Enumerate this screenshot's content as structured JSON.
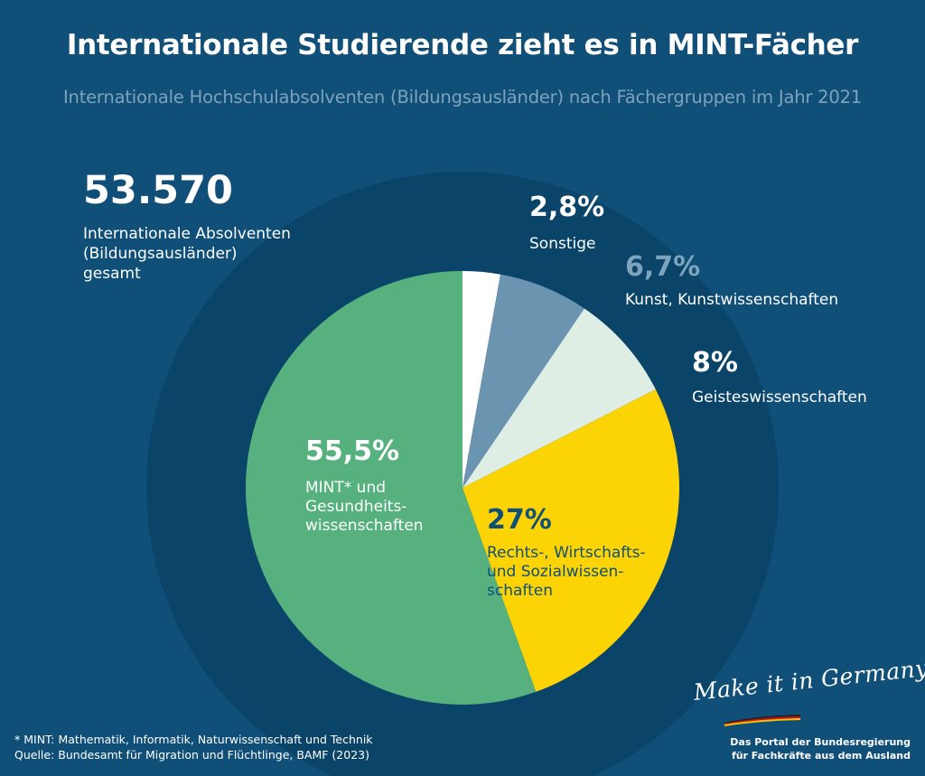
{
  "title": "Internationale Studierende zieht es in MINT-Fächer",
  "subtitle": "Internationale Hochschulabsolventen (Bildungsausländer) nach Fächergruppen im Jahr 2021",
  "total": {
    "value": "53.570",
    "label_lines": [
      "Internationale Absolventen",
      "(Bildungsausländer)",
      "gesamt"
    ]
  },
  "chart_data": {
    "type": "pie",
    "slices": [
      {
        "pct_label": "2,8%",
        "label": "Sonstige",
        "value": 2.8,
        "color": "#ffffff"
      },
      {
        "pct_label": "6,7%",
        "label": "Kunst, Kunstwissenschaften",
        "value": 6.7,
        "color": "#6a94b0"
      },
      {
        "pct_label": "8%",
        "label": "Geisteswissenschaften",
        "value": 8.0,
        "color": "#deeee5"
      },
      {
        "pct_label": "27%",
        "label": "Rechts-, Wirtschafts- und Sozialwissen-schaften",
        "value": 27.0,
        "color": "#fcd405"
      },
      {
        "pct_label": "55,5%",
        "label": "MINT* und Gesundheits-wissenschaften",
        "value": 55.5,
        "color": "#56b17f"
      }
    ]
  },
  "labels": {
    "sonstige": {
      "pct": "2,8%",
      "text": "Sonstige",
      "pct_color": "#ffffff",
      "text_color": "#ffffff"
    },
    "kunst": {
      "pct": "6,7%",
      "text": "Kunst, Kunstwissenschaften",
      "pct_color": "#7ea3bd",
      "text_color": "#ffffff"
    },
    "geistes": {
      "pct": "8%",
      "text": "Geisteswissenschaften",
      "pct_color": "#ffffff",
      "text_color": "#ffffff"
    },
    "recht": {
      "pct": "27%",
      "text_lines": [
        "Rechts-, Wirtschafts-",
        "und Sozialwissen-",
        "schaften"
      ],
      "pct_color": "#0f4f78",
      "text_color": "#0f4f78"
    },
    "mint": {
      "pct": "55,5%",
      "text_lines": [
        "MINT* und",
        "Gesundheits-",
        "wissenschaften"
      ],
      "pct_color": "#ffffff",
      "text_color": "#ffffff"
    }
  },
  "footnote": {
    "line1": "* MINT: Mathematik, Informatik, Naturwissenschaft und Technik",
    "line2": "Quelle: Bundesamt für Migration und Flüchtlinge, BAMF (2023)"
  },
  "brand": {
    "script": "Make it in Germany",
    "line1": "Das Portal der Bundesregierung",
    "line2": "für Fachkräfte aus dem Ausland"
  }
}
